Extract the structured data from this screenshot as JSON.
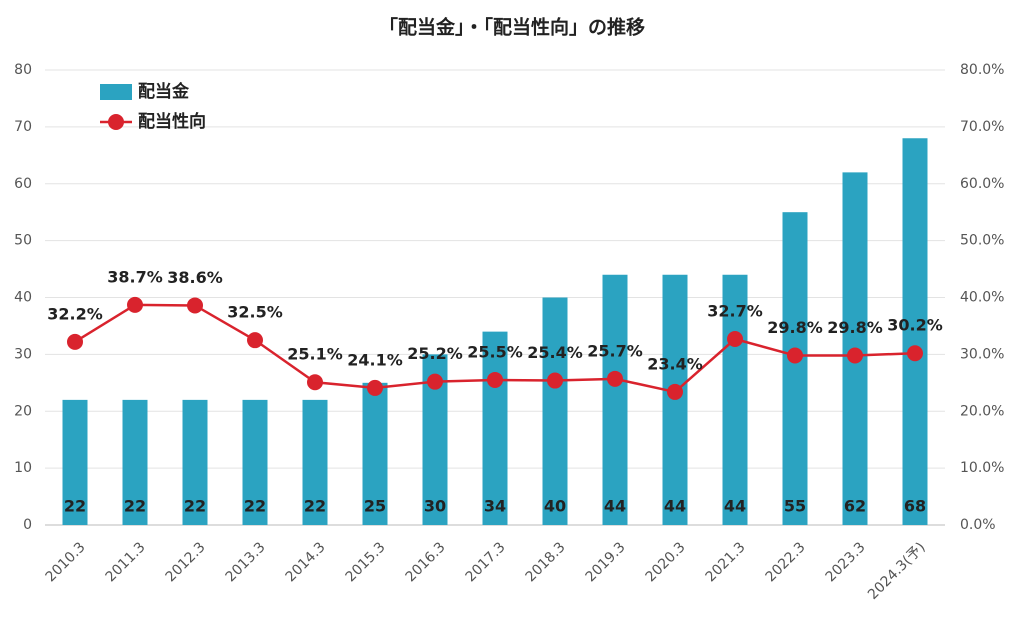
{
  "chart_data": {
    "type": "bar-line",
    "title": "「配当金」・「配当性向」の推移",
    "categories": [
      "2010.3",
      "2011.3",
      "2012.3",
      "2013.3",
      "2014.3",
      "2015.3",
      "2016.3",
      "2017.3",
      "2018.3",
      "2019.3",
      "2020.3",
      "2021.3",
      "2022.3",
      "2023.3",
      "2024.3(予)"
    ],
    "series": [
      {
        "name": "配当金",
        "type": "bar",
        "color": "#2ba3c1",
        "values": [
          22,
          22,
          22,
          22,
          22,
          25,
          30,
          34,
          40,
          44,
          44,
          44,
          55,
          62,
          68
        ]
      },
      {
        "name": "配当性向",
        "type": "line",
        "axis": "y2",
        "color": "#d9232d",
        "values": [
          32.2,
          38.7,
          38.6,
          32.5,
          25.1,
          24.1,
          25.2,
          25.5,
          25.4,
          25.7,
          23.4,
          32.7,
          29.8,
          29.8,
          30.2
        ],
        "value_labels": [
          "32.2%",
          "38.7%",
          "38.6%",
          "32.5%",
          "25.1%",
          "24.1%",
          "25.2%",
          "25.5%",
          "25.4%",
          "25.7%",
          "23.4%",
          "32.7%",
          "29.8%",
          "29.8%",
          "30.2%"
        ]
      }
    ],
    "ylim": [
      0,
      80
    ],
    "yticks": [
      0,
      10,
      20,
      30,
      40,
      50,
      60,
      70,
      80
    ],
    "y2lim": [
      0,
      80
    ],
    "y2ticks": [
      {
        "value": 0,
        "label": "0.0%"
      },
      {
        "value": 10,
        "label": "10.0%"
      },
      {
        "value": 20,
        "label": "20.0%"
      },
      {
        "value": 30,
        "label": "30.0%"
      },
      {
        "value": 40,
        "label": "40.0%"
      },
      {
        "value": 50,
        "label": "50.0%"
      },
      {
        "value": 60,
        "label": "60.0%"
      },
      {
        "value": 70,
        "label": "70.0%"
      },
      {
        "value": 80,
        "label": "80.0%"
      }
    ],
    "grid": true,
    "legend": "upper left"
  }
}
